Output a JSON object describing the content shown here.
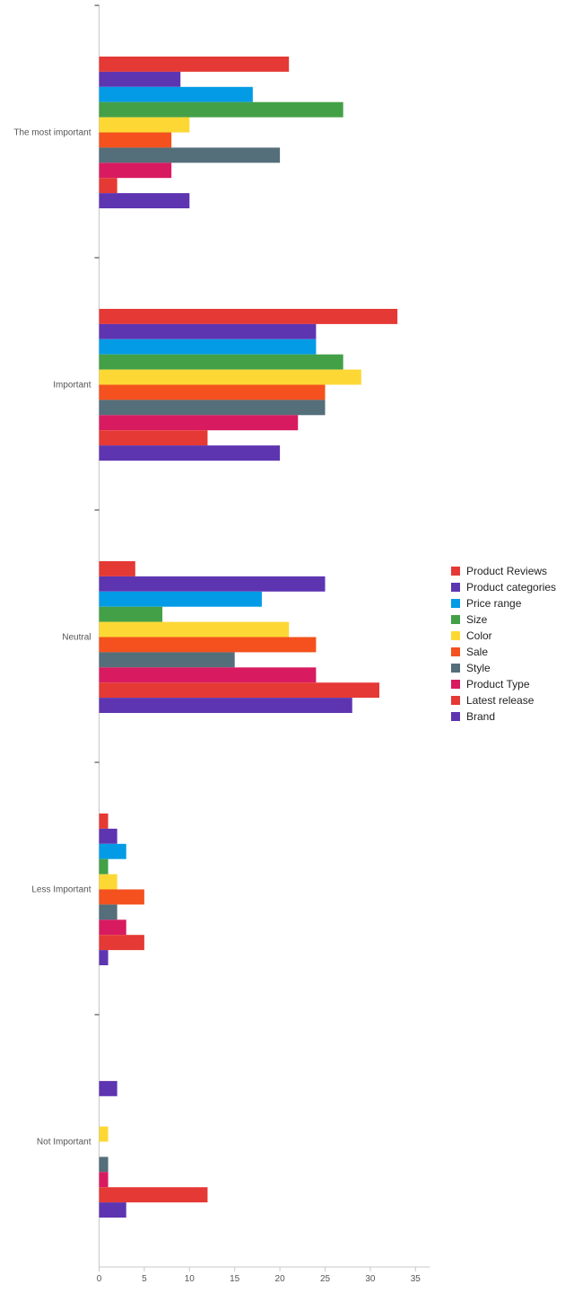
{
  "chart_data": {
    "type": "bar",
    "orientation": "horizontal",
    "title": "",
    "xlabel": "",
    "ylabel": "",
    "categories": [
      "The most important",
      "Important",
      "Neutral",
      "Less Important",
      "Not Important"
    ],
    "xlim": [
      0,
      36
    ],
    "xticks": [
      0,
      5,
      10,
      15,
      20,
      25,
      30,
      35
    ],
    "legend_position": "right",
    "series": [
      {
        "name": "Product Reviews",
        "color": "#e53935",
        "values": [
          21,
          33,
          4,
          1,
          0
        ]
      },
      {
        "name": "Product categories",
        "color": "#5e35b1",
        "values": [
          9,
          24,
          25,
          2,
          2
        ]
      },
      {
        "name": "Price range",
        "color": "#039be5",
        "values": [
          17,
          24,
          18,
          3,
          0
        ]
      },
      {
        "name": "Size",
        "color": "#43a047",
        "values": [
          27,
          27,
          7,
          1,
          0
        ]
      },
      {
        "name": "Color",
        "color": "#fdd835",
        "values": [
          10,
          29,
          21,
          2,
          1
        ]
      },
      {
        "name": "Sale",
        "color": "#f4511e",
        "values": [
          8,
          25,
          24,
          5,
          0
        ]
      },
      {
        "name": "Style",
        "color": "#546e7a",
        "values": [
          20,
          25,
          15,
          2,
          1
        ]
      },
      {
        "name": "Product Type",
        "color": "#d81b60",
        "values": [
          8,
          22,
          24,
          3,
          1
        ]
      },
      {
        "name": "Latest release",
        "color": "#e53935",
        "values": [
          2,
          12,
          31,
          5,
          12
        ]
      },
      {
        "name": "Brand",
        "color": "#5e35b1",
        "values": [
          10,
          20,
          28,
          1,
          3
        ]
      }
    ]
  }
}
